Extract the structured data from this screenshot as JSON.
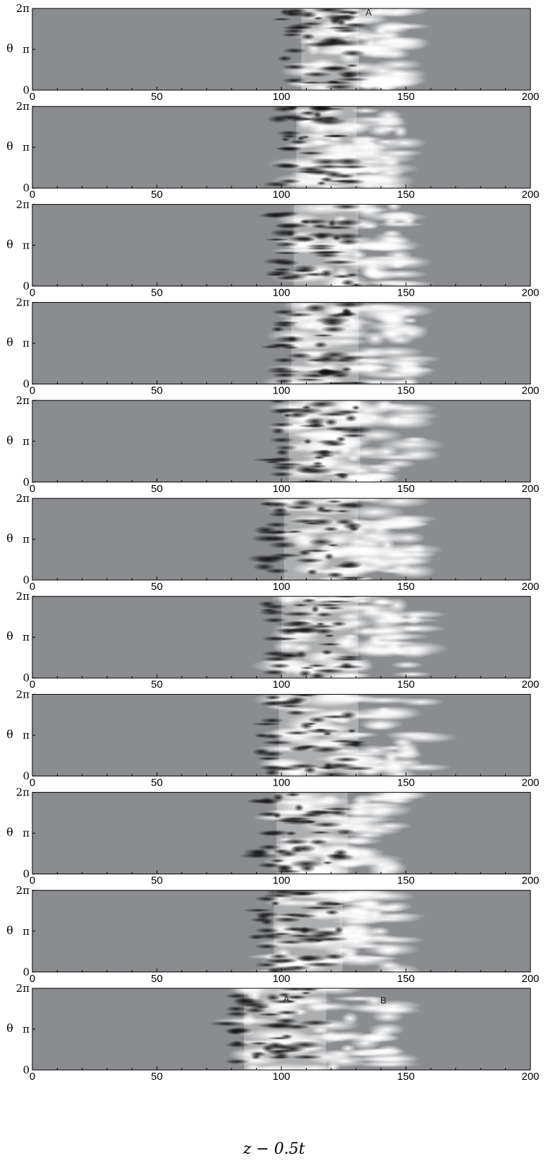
{
  "figure": {
    "xlabel": "z − 0.5t",
    "ylabel": "θ",
    "x_ticks": [
      "0",
      "50",
      "100",
      "150",
      "200"
    ],
    "y_ticks": [
      "0",
      "π",
      "2π"
    ],
    "colors": {
      "background_field": "#8a8c8f",
      "dark_streak": "#111111",
      "light_streak": "#ffffff",
      "axis": "#000000"
    }
  },
  "chart_data": [
    {
      "type": "heatmap",
      "panel": 1,
      "xlim": [
        0,
        200
      ],
      "ylim": [
        0,
        6.2832
      ],
      "front_x": 108,
      "pattern_extent": [
        100,
        150
      ],
      "annotations": [
        {
          "text": "A",
          "x": 135,
          "y": 6.0
        }
      ]
    },
    {
      "type": "heatmap",
      "panel": 2,
      "xlim": [
        0,
        200
      ],
      "ylim": [
        0,
        6.2832
      ],
      "front_x": 106,
      "pattern_extent": [
        98,
        150
      ],
      "annotations": []
    },
    {
      "type": "heatmap",
      "panel": 3,
      "xlim": [
        0,
        200
      ],
      "ylim": [
        0,
        6.2832
      ],
      "front_x": 105,
      "pattern_extent": [
        97,
        152
      ],
      "annotations": []
    },
    {
      "type": "heatmap",
      "panel": 4,
      "xlim": [
        0,
        200
      ],
      "ylim": [
        0,
        6.2832
      ],
      "front_x": 104,
      "pattern_extent": [
        96,
        153
      ],
      "annotations": []
    },
    {
      "type": "heatmap",
      "panel": 5,
      "xlim": [
        0,
        200
      ],
      "ylim": [
        0,
        6.2832
      ],
      "front_x": 103,
      "pattern_extent": [
        95,
        155
      ],
      "annotations": []
    },
    {
      "type": "heatmap",
      "panel": 6,
      "xlim": [
        0,
        200
      ],
      "ylim": [
        0,
        6.2832
      ],
      "front_x": 101,
      "pattern_extent": [
        93,
        155
      ],
      "annotations": []
    },
    {
      "type": "heatmap",
      "panel": 7,
      "xlim": [
        0,
        200
      ],
      "ylim": [
        0,
        6.2832
      ],
      "front_x": 100,
      "pattern_extent": [
        92,
        156
      ],
      "annotations": []
    },
    {
      "type": "heatmap",
      "panel": 8,
      "xlim": [
        0,
        200
      ],
      "ylim": [
        0,
        6.2832
      ],
      "front_x": 99,
      "pattern_extent": [
        91,
        157
      ],
      "annotations": []
    },
    {
      "type": "heatmap",
      "panel": 9,
      "xlim": [
        0,
        200
      ],
      "ylim": [
        0,
        6.2832
      ],
      "front_x": 98,
      "pattern_extent": [
        90,
        150
      ],
      "annotations": []
    },
    {
      "type": "heatmap",
      "panel": 10,
      "xlim": [
        0,
        200
      ],
      "ylim": [
        0,
        6.2832
      ],
      "front_x": 97,
      "pattern_extent": [
        89,
        147
      ],
      "annotations": []
    },
    {
      "type": "heatmap",
      "panel": 11,
      "xlim": [
        0,
        200
      ],
      "ylim": [
        0,
        6.2832
      ],
      "front_x": 85,
      "pattern_extent": [
        78,
        145
      ],
      "annotations": [
        {
          "text": "A",
          "x": 102,
          "y": 5.5
        },
        {
          "text": "B",
          "x": 141,
          "y": 5.4
        }
      ]
    }
  ]
}
